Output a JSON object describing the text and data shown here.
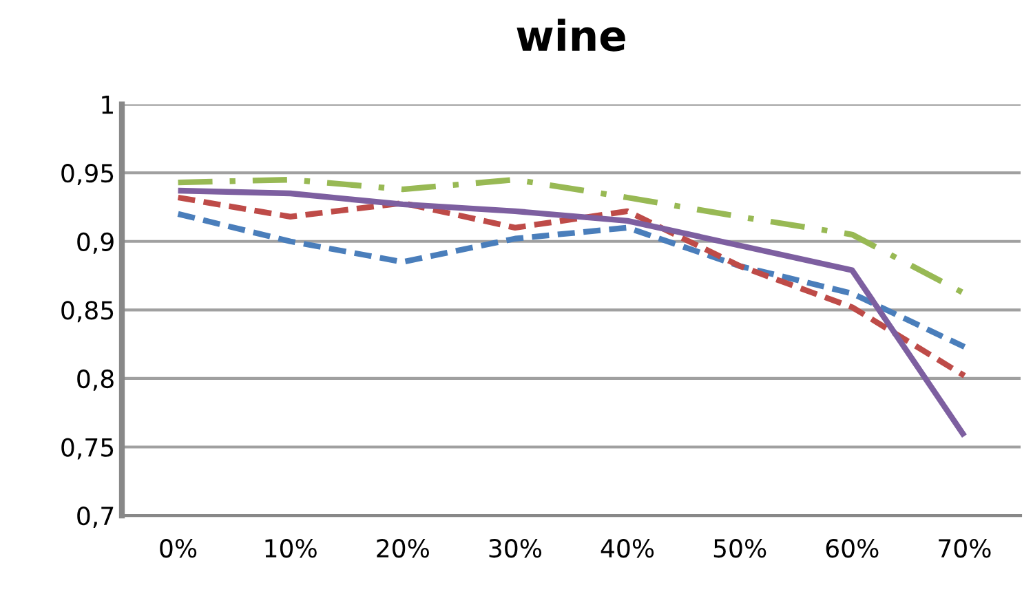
{
  "chart_data": {
    "type": "line",
    "title": "wine",
    "categories": [
      "0%",
      "10%",
      "20%",
      "30%",
      "40%",
      "50%",
      "60%",
      "70%"
    ],
    "series": [
      {
        "color": "#4a7ebb",
        "line_style": "dashed",
        "values": [
          0.92,
          0.9,
          0.885,
          0.902,
          0.91,
          0.882,
          0.862,
          0.823
        ]
      },
      {
        "color": "#be4b48",
        "line_style": "dashed",
        "values": [
          0.932,
          0.918,
          0.928,
          0.91,
          0.922,
          0.882,
          0.852,
          0.802
        ]
      },
      {
        "color": "#98b954",
        "line_style": "dashdot",
        "values": [
          0.943,
          0.945,
          0.938,
          0.945,
          0.932,
          0.918,
          0.905,
          0.862
        ]
      },
      {
        "color": "#7d5fa0",
        "line_style": "solid",
        "values": [
          0.937,
          0.935,
          0.927,
          0.922,
          0.915,
          0.897,
          0.879,
          0.758
        ]
      }
    ],
    "ylim": [
      0.7,
      1
    ],
    "yticks": [
      {
        "value": 0.7,
        "label": "0,7"
      },
      {
        "value": 0.75,
        "label": "0,75"
      },
      {
        "value": 0.8,
        "label": "0,8"
      },
      {
        "value": 0.85,
        "label": "0,85"
      },
      {
        "value": 0.9,
        "label": "0,9"
      },
      {
        "value": 0.95,
        "label": "0,95"
      },
      {
        "value": 1,
        "label": "1"
      }
    ],
    "grid": "y",
    "marker": "none"
  }
}
